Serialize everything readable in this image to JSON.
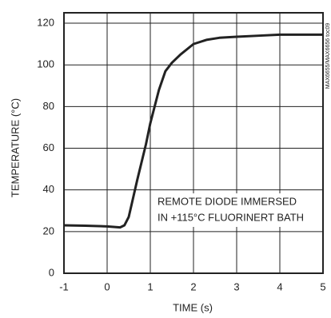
{
  "chart_data": {
    "type": "line",
    "x_label": "TIME (s)",
    "y_label": "TEMPERATURE (°C)",
    "annotations": [
      "REMOTE DIODE IMMERSED",
      "IN +115°C FLUORINERT BATH"
    ],
    "side_note": "MAX6655/MAX6656 toc09",
    "x": [
      -1,
      -0.5,
      0,
      0.3,
      0.4,
      0.5,
      0.7,
      0.9,
      1.0,
      1.2,
      1.35,
      1.5,
      1.7,
      2,
      2.3,
      2.6,
      3,
      3.5,
      4,
      5
    ],
    "values": [
      23,
      22.8,
      22.5,
      22,
      23,
      27,
      45,
      62,
      72,
      88,
      97,
      101,
      105,
      110,
      112,
      113,
      113.5,
      114,
      114.5,
      114.5
    ],
    "color": "#222222",
    "xlim": [
      -1,
      5
    ],
    "xticks": [
      -1,
      0,
      1,
      2,
      3,
      4,
      5
    ],
    "ylim": [
      0,
      125
    ],
    "yticks": [
      0,
      20,
      40,
      60,
      80,
      100,
      120
    ],
    "grid": true
  }
}
